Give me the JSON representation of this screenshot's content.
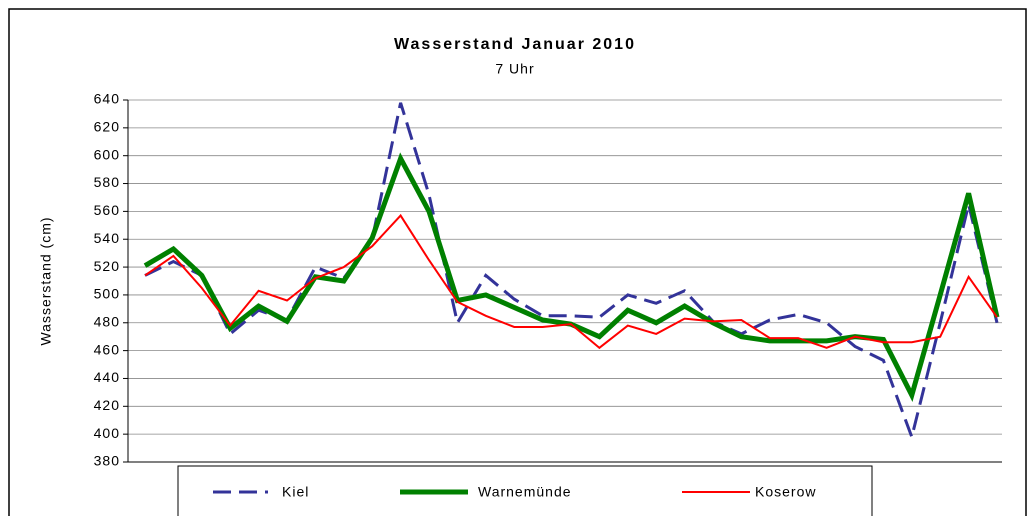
{
  "chart_data": {
    "type": "line",
    "title": "Wasserstand Januar 2010",
    "subtitle": "7 Uhr",
    "y_label": "Wasserstand (cm)",
    "x": [
      1,
      2,
      3,
      4,
      5,
      6,
      7,
      8,
      9,
      10,
      11,
      12,
      13,
      14,
      15,
      16,
      17,
      18,
      19,
      20,
      21,
      22,
      23,
      24,
      25,
      26,
      27,
      28,
      29,
      30,
      31
    ],
    "xlim": [
      1,
      31
    ],
    "ylim": [
      380,
      640
    ],
    "yticks": [
      380,
      400,
      420,
      440,
      460,
      480,
      500,
      520,
      540,
      560,
      580,
      600,
      620,
      640
    ],
    "grid": true,
    "legend": "bottom",
    "series": [
      {
        "name": "Kiel",
        "color": "#333399",
        "dashed": true,
        "values": [
          514,
          524,
          514,
          472,
          489,
          482,
          520,
          512,
          540,
          638,
          572,
          480,
          514,
          497,
          485,
          485,
          484,
          500,
          494,
          503,
          481,
          472,
          482,
          486,
          480,
          463,
          453,
          398,
          480,
          565,
          480
        ]
      },
      {
        "name": "Warnemünde",
        "color": "#008000",
        "dashed": false,
        "values": [
          521,
          533,
          514,
          476,
          492,
          481,
          513,
          510,
          541,
          598,
          560,
          496,
          500,
          491,
          482,
          479,
          470,
          489,
          480,
          492,
          480,
          470,
          467,
          467,
          467,
          470,
          468,
          428,
          500,
          573,
          484
        ]
      },
      {
        "name": "Koserow",
        "color": "#ff0000",
        "dashed": false,
        "values": [
          514,
          528,
          505,
          478,
          503,
          496,
          512,
          520,
          535,
          557,
          525,
          495,
          485,
          477,
          477,
          479,
          462,
          478,
          472,
          483,
          481,
          482,
          469,
          469,
          462,
          470,
          466,
          466,
          470,
          513,
          484
        ]
      }
    ]
  }
}
